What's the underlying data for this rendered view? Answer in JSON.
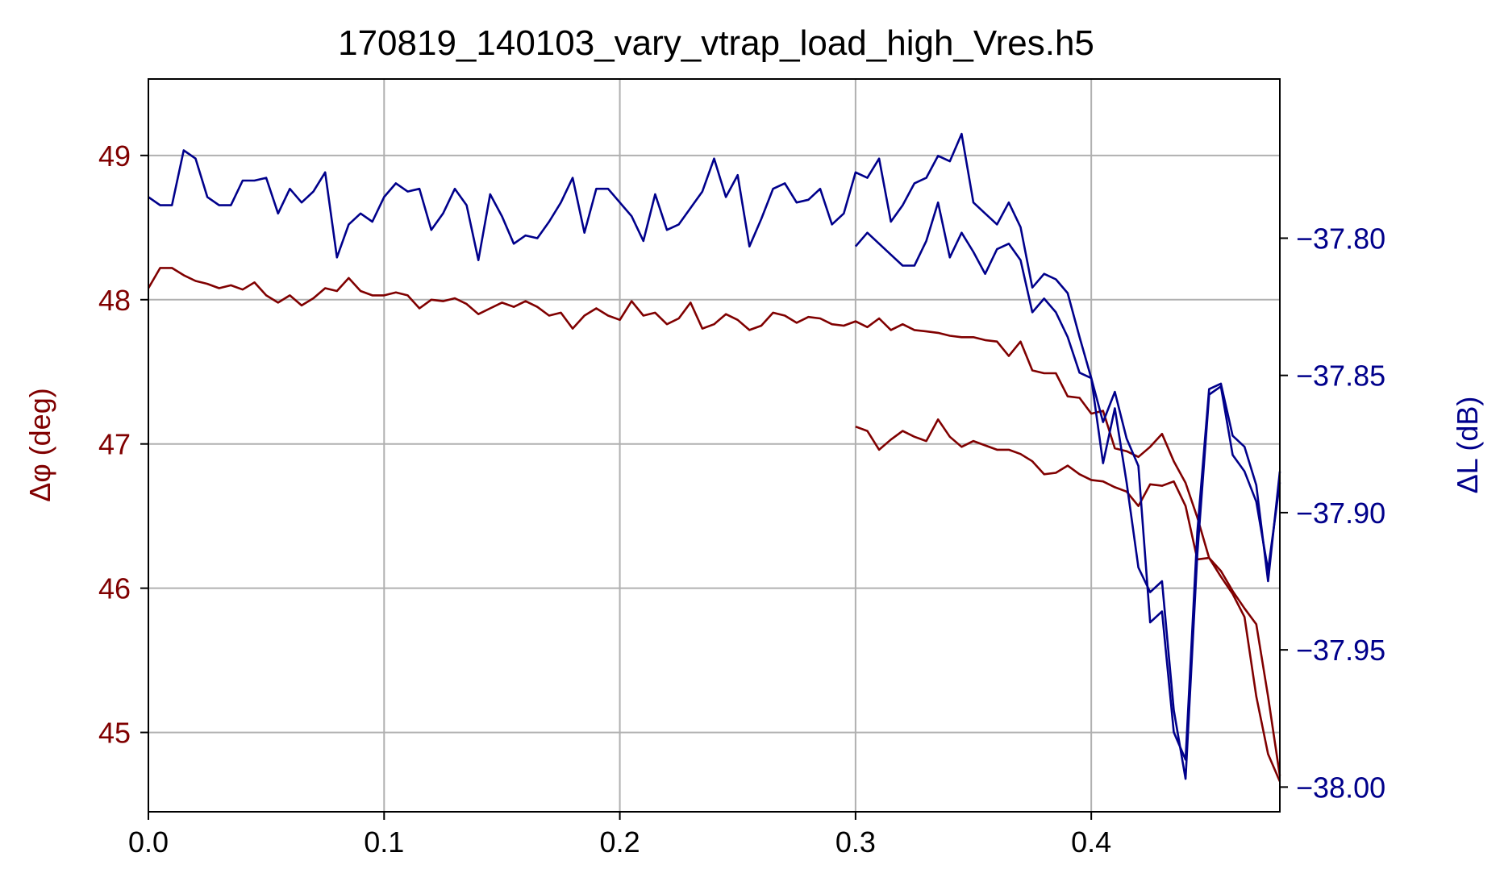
{
  "chart_data": {
    "type": "line",
    "title": "170819_140103_vary_vtrap_load_high_Vres.h5",
    "xlabel": "",
    "ylabel_left": "Δφ (deg)",
    "ylabel_right": "ΔL (dB)",
    "xlim": [
      0.0,
      0.48
    ],
    "ylim_left": [
      44.45,
      49.53
    ],
    "ylim_right": [
      -38.009,
      -37.742
    ],
    "xticks": [
      0.0,
      0.1,
      0.2,
      0.3,
      0.4
    ],
    "xtick_labels": [
      "0.0",
      "0.1",
      "0.2",
      "0.3",
      "0.4"
    ],
    "yticks_left": [
      45,
      46,
      47,
      48,
      49
    ],
    "ytick_labels_left": [
      "45",
      "46",
      "47",
      "48",
      "49"
    ],
    "yticks_right": [
      -38.0,
      -37.95,
      -37.9,
      -37.85,
      -37.8
    ],
    "ytick_labels_right": [
      "−38.00",
      "−37.95",
      "−37.90",
      "−37.85",
      "−37.80"
    ],
    "grid": true,
    "colors": {
      "left": "#800000",
      "right": "#00008b",
      "grid": "#b0b0b0",
      "axes": "#000000"
    },
    "series": [
      {
        "axis": "left",
        "x": [
          0.0,
          0.005,
          0.01,
          0.015,
          0.02,
          0.025,
          0.03,
          0.035,
          0.04,
          0.045,
          0.05,
          0.055,
          0.06,
          0.065,
          0.07,
          0.075,
          0.08,
          0.085,
          0.09,
          0.095,
          0.1,
          0.105,
          0.11,
          0.115,
          0.12,
          0.125,
          0.13,
          0.135,
          0.14,
          0.145,
          0.15,
          0.155,
          0.16,
          0.165,
          0.17,
          0.175,
          0.18,
          0.185,
          0.19,
          0.195,
          0.2,
          0.205,
          0.21,
          0.215,
          0.22,
          0.225,
          0.23,
          0.235,
          0.24,
          0.245,
          0.25,
          0.255,
          0.26,
          0.265,
          0.27,
          0.275,
          0.28,
          0.285,
          0.29,
          0.295,
          0.3,
          0.305,
          0.31,
          0.315,
          0.32,
          0.325,
          0.33,
          0.335,
          0.34,
          0.345,
          0.35,
          0.355,
          0.36,
          0.365,
          0.37,
          0.375,
          0.38,
          0.385,
          0.39,
          0.395,
          0.4,
          0.405,
          0.41,
          0.415,
          0.42,
          0.425,
          0.43,
          0.435,
          0.44,
          0.445,
          0.45,
          0.455,
          0.46,
          0.465,
          0.47,
          0.475,
          0.48
        ],
        "y": [
          48.08,
          48.22,
          48.22,
          48.17,
          48.13,
          48.11,
          48.08,
          48.1,
          48.07,
          48.12,
          48.03,
          47.98,
          48.03,
          47.96,
          48.01,
          48.08,
          48.06,
          48.15,
          48.06,
          48.03,
          48.03,
          48.05,
          48.03,
          47.94,
          48.0,
          47.99,
          48.01,
          47.97,
          47.9,
          47.94,
          47.98,
          47.95,
          47.99,
          47.95,
          47.89,
          47.91,
          47.8,
          47.89,
          47.94,
          47.89,
          47.86,
          47.99,
          47.89,
          47.91,
          47.83,
          47.87,
          47.98,
          47.8,
          47.83,
          47.9,
          47.86,
          47.79,
          47.82,
          47.91,
          47.89,
          47.84,
          47.88,
          47.87,
          47.83,
          47.82,
          47.85,
          47.81,
          47.87,
          47.79,
          47.83,
          47.79,
          47.78,
          47.77,
          47.75,
          47.74,
          47.74,
          47.72,
          47.71,
          47.61,
          47.71,
          47.51,
          47.49,
          47.49,
          47.33,
          47.32,
          47.21,
          47.23,
          46.97,
          46.95,
          46.91,
          46.98,
          47.07,
          46.88,
          46.73,
          46.49,
          46.21,
          46.12,
          45.98,
          45.86,
          45.75,
          45.25,
          44.7
        ]
      },
      {
        "axis": "left",
        "x": [
          0.3,
          0.305,
          0.31,
          0.315,
          0.32,
          0.325,
          0.33,
          0.335,
          0.34,
          0.345,
          0.35,
          0.355,
          0.36,
          0.365,
          0.37,
          0.375,
          0.38,
          0.385,
          0.39,
          0.395,
          0.4,
          0.405,
          0.41,
          0.415,
          0.42,
          0.425,
          0.43,
          0.435,
          0.44,
          0.445,
          0.45,
          0.455,
          0.46,
          0.465,
          0.47,
          0.475,
          0.48
        ],
        "y": [
          47.12,
          47.09,
          46.96,
          47.03,
          47.09,
          47.05,
          47.02,
          47.17,
          47.05,
          46.98,
          47.02,
          46.99,
          46.96,
          46.96,
          46.93,
          46.88,
          46.79,
          46.8,
          46.85,
          46.79,
          46.75,
          46.74,
          46.7,
          46.67,
          46.57,
          46.72,
          46.71,
          46.74,
          46.57,
          46.2,
          46.21,
          46.08,
          45.96,
          45.8,
          45.25,
          44.85,
          44.66
        ]
      },
      {
        "axis": "right",
        "x": [
          0.0,
          0.005,
          0.01,
          0.015,
          0.02,
          0.025,
          0.03,
          0.035,
          0.04,
          0.045,
          0.05,
          0.055,
          0.06,
          0.065,
          0.07,
          0.075,
          0.08,
          0.085,
          0.09,
          0.095,
          0.1,
          0.105,
          0.11,
          0.115,
          0.12,
          0.125,
          0.13,
          0.135,
          0.14,
          0.145,
          0.15,
          0.155,
          0.16,
          0.165,
          0.17,
          0.175,
          0.18,
          0.185,
          0.19,
          0.195,
          0.2,
          0.205,
          0.21,
          0.215,
          0.22,
          0.225,
          0.23,
          0.235,
          0.24,
          0.245,
          0.25,
          0.255,
          0.26,
          0.265,
          0.27,
          0.275,
          0.28,
          0.285,
          0.29,
          0.295,
          0.3,
          0.305,
          0.31,
          0.315,
          0.32,
          0.325,
          0.33,
          0.335,
          0.34,
          0.345,
          0.35,
          0.355,
          0.36,
          0.365,
          0.37,
          0.375,
          0.38,
          0.385,
          0.39,
          0.395,
          0.4,
          0.405,
          0.41,
          0.415,
          0.42,
          0.425,
          0.43,
          0.435,
          0.44,
          0.445,
          0.45,
          0.455,
          0.46,
          0.465,
          0.47,
          0.475,
          0.48
        ],
        "y": [
          -37.785,
          -37.788,
          -37.788,
          -37.768,
          -37.771,
          -37.785,
          -37.788,
          -37.788,
          -37.779,
          -37.779,
          -37.778,
          -37.791,
          -37.782,
          -37.787,
          -37.783,
          -37.776,
          -37.807,
          -37.795,
          -37.791,
          -37.794,
          -37.785,
          -37.78,
          -37.783,
          -37.782,
          -37.797,
          -37.791,
          -37.782,
          -37.788,
          -37.808,
          -37.784,
          -37.792,
          -37.802,
          -37.799,
          -37.8,
          -37.794,
          -37.787,
          -37.778,
          -37.798,
          -37.782,
          -37.782,
          -37.787,
          -37.792,
          -37.801,
          -37.784,
          -37.797,
          -37.795,
          -37.789,
          -37.783,
          -37.771,
          -37.785,
          -37.777,
          -37.803,
          -37.793,
          -37.782,
          -37.78,
          -37.787,
          -37.786,
          -37.782,
          -37.795,
          -37.791,
          -37.776,
          -37.778,
          -37.771,
          -37.794,
          -37.788,
          -37.78,
          -37.778,
          -37.77,
          -37.772,
          -37.762,
          -37.787,
          -37.791,
          -37.795,
          -37.787,
          -37.796,
          -37.818,
          -37.813,
          -37.815,
          -37.82,
          -37.836,
          -37.851,
          -37.867,
          -37.856,
          -37.873,
          -37.883,
          -37.94,
          -37.936,
          -37.98,
          -37.99,
          -37.907,
          -37.855,
          -37.853,
          -37.872,
          -37.876,
          -37.89,
          -37.925,
          -37.885
        ]
      },
      {
        "axis": "right",
        "x": [
          0.3,
          0.305,
          0.31,
          0.315,
          0.32,
          0.325,
          0.33,
          0.335,
          0.34,
          0.345,
          0.35,
          0.355,
          0.36,
          0.365,
          0.37,
          0.375,
          0.38,
          0.385,
          0.39,
          0.395,
          0.4,
          0.405,
          0.41,
          0.415,
          0.42,
          0.425,
          0.43,
          0.435,
          0.44,
          0.445,
          0.45,
          0.455,
          0.46,
          0.465,
          0.47,
          0.475,
          0.48
        ],
        "y": [
          -37.803,
          -37.798,
          -37.802,
          -37.806,
          -37.81,
          -37.81,
          -37.801,
          -37.787,
          -37.807,
          -37.798,
          -37.805,
          -37.813,
          -37.804,
          -37.802,
          -37.808,
          -37.827,
          -37.822,
          -37.827,
          -37.836,
          -37.849,
          -37.851,
          -37.882,
          -37.862,
          -37.889,
          -37.92,
          -37.929,
          -37.925,
          -37.972,
          -37.997,
          -37.915,
          -37.857,
          -37.854,
          -37.879,
          -37.885,
          -37.896,
          -37.921,
          -37.889
        ]
      }
    ]
  }
}
